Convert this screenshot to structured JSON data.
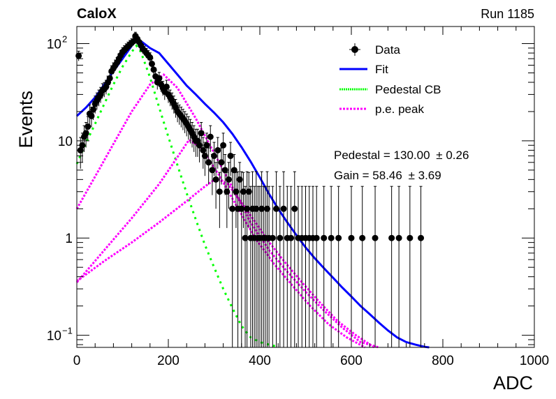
{
  "header": {
    "experiment": "CaloX",
    "run_label": "Run 1185"
  },
  "fit_results": {
    "pedestal": "Pedestal = 130.00",
    "pedestal_err": "± 0.26",
    "gain": "Gain = 58.46",
    "gain_err": "± 3.69"
  },
  "legend": {
    "data": "Data",
    "fit": "Fit",
    "pedestal": "Pedestal CB",
    "pe": "p.e. peak"
  },
  "colors": {
    "data": "#000000",
    "fit": "#0000ff",
    "pedestal": "#00ff00",
    "pe": "#ff00ff"
  },
  "chart_data": {
    "type": "scatter",
    "title": "",
    "xlabel": "ADC",
    "ylabel": "Events",
    "xlim": [
      0,
      1000
    ],
    "ylim": [
      0.075,
      150
    ],
    "yscale": "log",
    "xticks": [
      "0",
      "200",
      "400",
      "600",
      "800",
      "1000"
    ],
    "yticks": [
      {
        "value": 0.1,
        "base": "10",
        "exp": "−1"
      },
      {
        "value": 1,
        "base": "1",
        "exp": ""
      },
      {
        "value": 10,
        "base": "10",
        "exp": ""
      },
      {
        "value": 100,
        "base": "10",
        "exp": "2"
      }
    ],
    "legend_position": "top-right",
    "series": [
      {
        "name": "Data",
        "kind": "points",
        "x": [
          4,
          8,
          12,
          16,
          20,
          24,
          28,
          32,
          36,
          40,
          44,
          48,
          52,
          56,
          60,
          64,
          68,
          72,
          76,
          80,
          84,
          88,
          92,
          96,
          100,
          104,
          108,
          112,
          116,
          120,
          124,
          128,
          132,
          136,
          140,
          144,
          148,
          152,
          156,
          160,
          164,
          168,
          172,
          176,
          180,
          184,
          188,
          192,
          196,
          200,
          204,
          208,
          212,
          216,
          220,
          224,
          228,
          232,
          236,
          240,
          244,
          248,
          252,
          256,
          260,
          264,
          268,
          272,
          276,
          280,
          284,
          288,
          292,
          296,
          300,
          304,
          308,
          312,
          316,
          320,
          324,
          328,
          332,
          336,
          340,
          344,
          348,
          352,
          356,
          360,
          364,
          368,
          372,
          376,
          380,
          384,
          388,
          392,
          396,
          400,
          404,
          408,
          412,
          416,
          420,
          428,
          436,
          444,
          452,
          460,
          468,
          476,
          484,
          492,
          500,
          508,
          516,
          524,
          540,
          556,
          572,
          600,
          624,
          652,
          688,
          704,
          728,
          752
        ],
        "y": [
          75,
          8,
          9,
          11,
          12,
          14,
          19,
          18,
          21,
          24,
          26,
          28,
          30,
          33,
          34,
          36,
          40,
          44,
          52,
          56,
          60,
          64,
          70,
          76,
          82,
          86,
          90,
          94,
          98,
          102,
          106,
          120,
          112,
          104,
          96,
          88,
          85,
          80,
          76,
          72,
          62,
          54,
          46,
          40,
          44,
          38,
          35,
          32,
          36,
          30,
          28,
          26,
          24,
          22,
          20,
          19,
          18,
          17,
          16,
          15,
          14,
          13,
          12,
          11,
          10,
          10,
          9,
          12,
          8,
          7,
          9,
          6,
          11,
          5,
          7,
          4,
          8,
          3,
          6,
          9,
          5,
          3,
          4,
          7,
          2,
          5,
          3,
          2,
          4,
          2,
          3,
          1,
          2,
          3,
          1,
          2,
          1,
          2,
          1,
          1,
          2,
          1,
          1,
          2,
          1,
          1,
          2,
          1,
          2,
          1,
          1,
          2,
          1,
          1,
          1,
          1,
          1,
          1,
          1,
          1,
          1,
          1,
          1,
          1,
          1,
          1,
          1,
          1
        ]
      },
      {
        "name": "Fit",
        "kind": "line",
        "x": [
          0,
          20,
          40,
          60,
          80,
          100,
          120,
          130,
          140,
          160,
          180,
          200,
          220,
          240,
          260,
          280,
          300,
          320,
          340,
          360,
          380,
          400,
          420,
          440,
          460,
          480,
          500,
          520,
          540,
          560,
          580,
          600,
          620,
          640,
          660,
          680,
          700,
          720,
          740,
          760,
          770
        ],
        "y": [
          18,
          22,
          28,
          38,
          52,
          70,
          95,
          115,
          106,
          90,
          80,
          62,
          48,
          37,
          30,
          24,
          19.5,
          15.5,
          11.8,
          8.6,
          6.1,
          4.2,
          2.85,
          2.0,
          1.45,
          1.07,
          0.8,
          0.62,
          0.49,
          0.39,
          0.31,
          0.25,
          0.2,
          0.165,
          0.135,
          0.112,
          0.095,
          0.085,
          0.08,
          0.076,
          0.075
        ]
      },
      {
        "name": "Pedestal CB",
        "kind": "line",
        "x": [
          0,
          20,
          40,
          60,
          80,
          100,
          120,
          130,
          140,
          160,
          180,
          200,
          220,
          240,
          260,
          280,
          300,
          320,
          340,
          360,
          380,
          400,
          420,
          440
        ],
        "y": [
          5.8,
          9.5,
          15,
          24,
          38,
          58,
          82,
          95,
          82,
          45,
          22,
          11,
          5.6,
          2.9,
          1.55,
          0.85,
          0.5,
          0.3,
          0.19,
          0.125,
          0.095,
          0.085,
          0.08,
          0.076
        ]
      },
      {
        "name": "p.e. peak 1",
        "kind": "line",
        "x": [
          0,
          40,
          80,
          120,
          160,
          190,
          220,
          260,
          300,
          340,
          380,
          420,
          460,
          500,
          540,
          580,
          620,
          660
        ],
        "y": [
          2.0,
          4.3,
          9.3,
          20,
          38,
          48,
          35,
          17,
          7.5,
          3.3,
          1.45,
          0.75,
          0.45,
          0.28,
          0.18,
          0.12,
          0.085,
          0.075
        ]
      },
      {
        "name": "p.e. peak 2",
        "kind": "line",
        "x": [
          0,
          60,
          120,
          180,
          220,
          245,
          270,
          310,
          350,
          390,
          430,
          470,
          510,
          550,
          590,
          630
        ],
        "y": [
          0.35,
          0.75,
          1.6,
          3.6,
          6.8,
          10.2,
          8.6,
          4.5,
          2.1,
          1.0,
          0.55,
          0.33,
          0.2,
          0.13,
          0.095,
          0.075
        ]
      },
      {
        "name": "p.e. peak 3",
        "kind": "line",
        "x": [
          0,
          60,
          120,
          180,
          240,
          280,
          305,
          330,
          370,
          410,
          450,
          490,
          530,
          570,
          610,
          650
        ],
        "y": [
          0.36,
          0.58,
          0.9,
          1.45,
          2.4,
          3.4,
          4.1,
          3.6,
          2.0,
          1.05,
          0.6,
          0.36,
          0.22,
          0.14,
          0.1,
          0.075
        ]
      }
    ]
  }
}
